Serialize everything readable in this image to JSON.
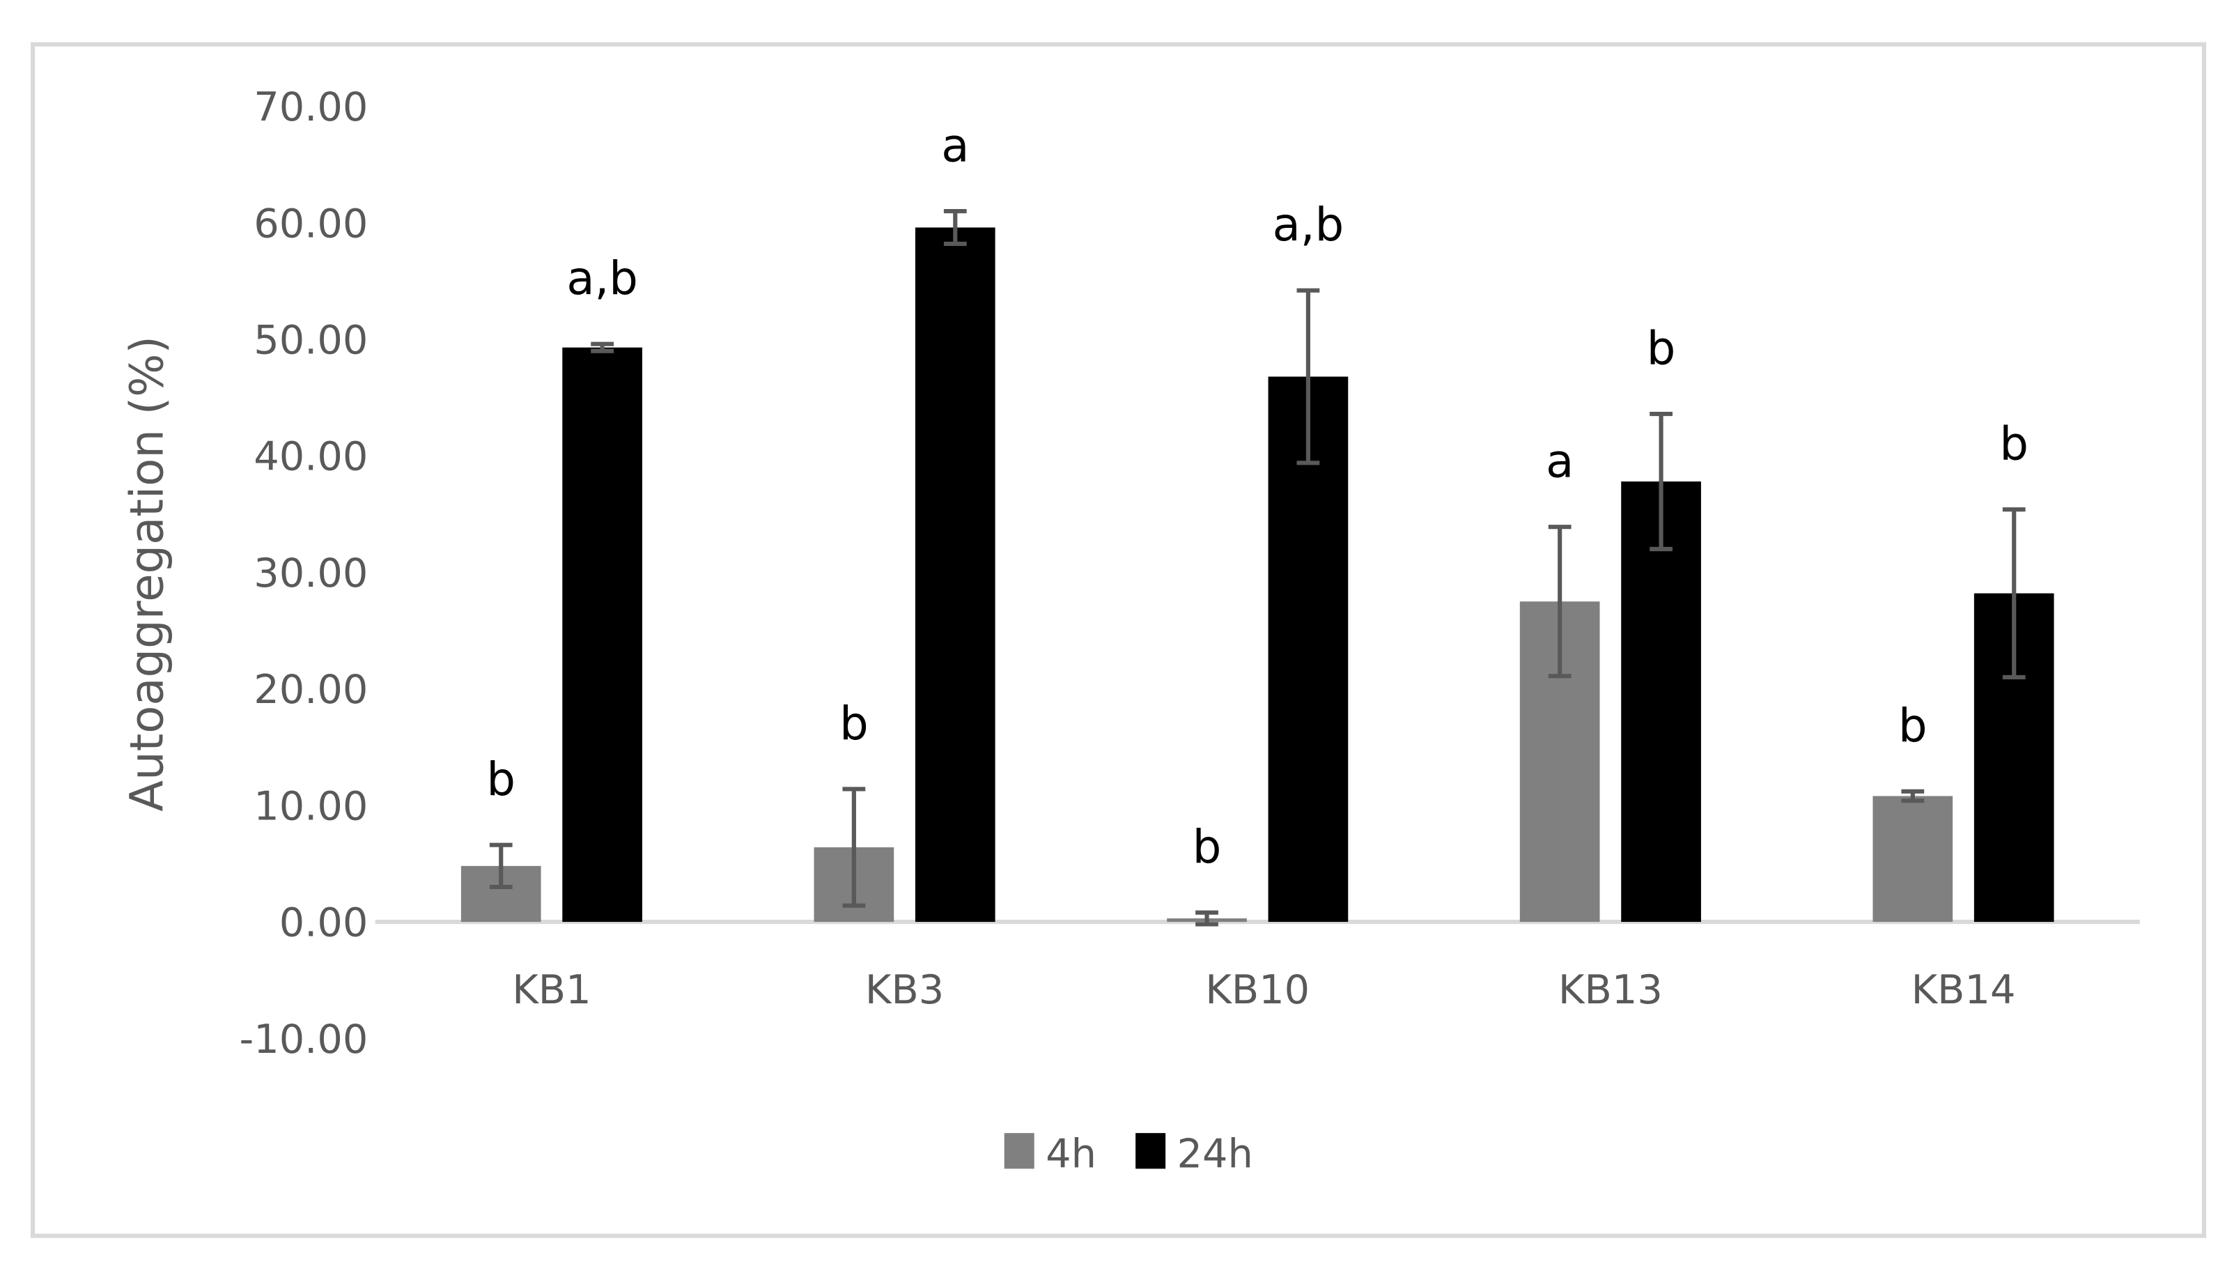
{
  "chart_data": {
    "type": "bar",
    "title": "",
    "xlabel": "",
    "ylabel": "Autoaggregation (%)",
    "ylim": [
      -10,
      70
    ],
    "yticks": [
      -10,
      0,
      10,
      20,
      30,
      40,
      50,
      60,
      70
    ],
    "ytick_labels": [
      "-10.00",
      "0.00",
      "10.00",
      "20.00",
      "30.00",
      "40.00",
      "50.00",
      "60.00",
      "70.00"
    ],
    "grid": false,
    "legend_position": "bottom",
    "categories": [
      "KB1",
      "KB3",
      "KB10",
      "KB13",
      "KB14"
    ],
    "series": [
      {
        "name": "4h",
        "color": "#808080",
        "values": [
          4.8,
          6.4,
          0.3,
          27.5,
          10.8
        ],
        "error": [
          1.8,
          5.0,
          0.5,
          6.4,
          0.4
        ],
        "significance": [
          "b",
          "b",
          "b",
          "a",
          "b"
        ]
      },
      {
        "name": "24h",
        "color": "#000000",
        "values": [
          49.3,
          59.6,
          46.8,
          37.8,
          28.2
        ],
        "error": [
          0.3,
          1.4,
          7.4,
          5.8,
          7.2
        ],
        "significance": [
          "a,b",
          "a",
          "a,b",
          "b",
          "b"
        ]
      }
    ]
  },
  "legend": {
    "items": [
      {
        "label": "4h",
        "color": "#808080"
      },
      {
        "label": "24h",
        "color": "#000000"
      }
    ]
  },
  "style": {
    "frame_color": "#d9d9d9",
    "axis_color": "#d9d9d9",
    "errorbar_color": "#595959"
  }
}
